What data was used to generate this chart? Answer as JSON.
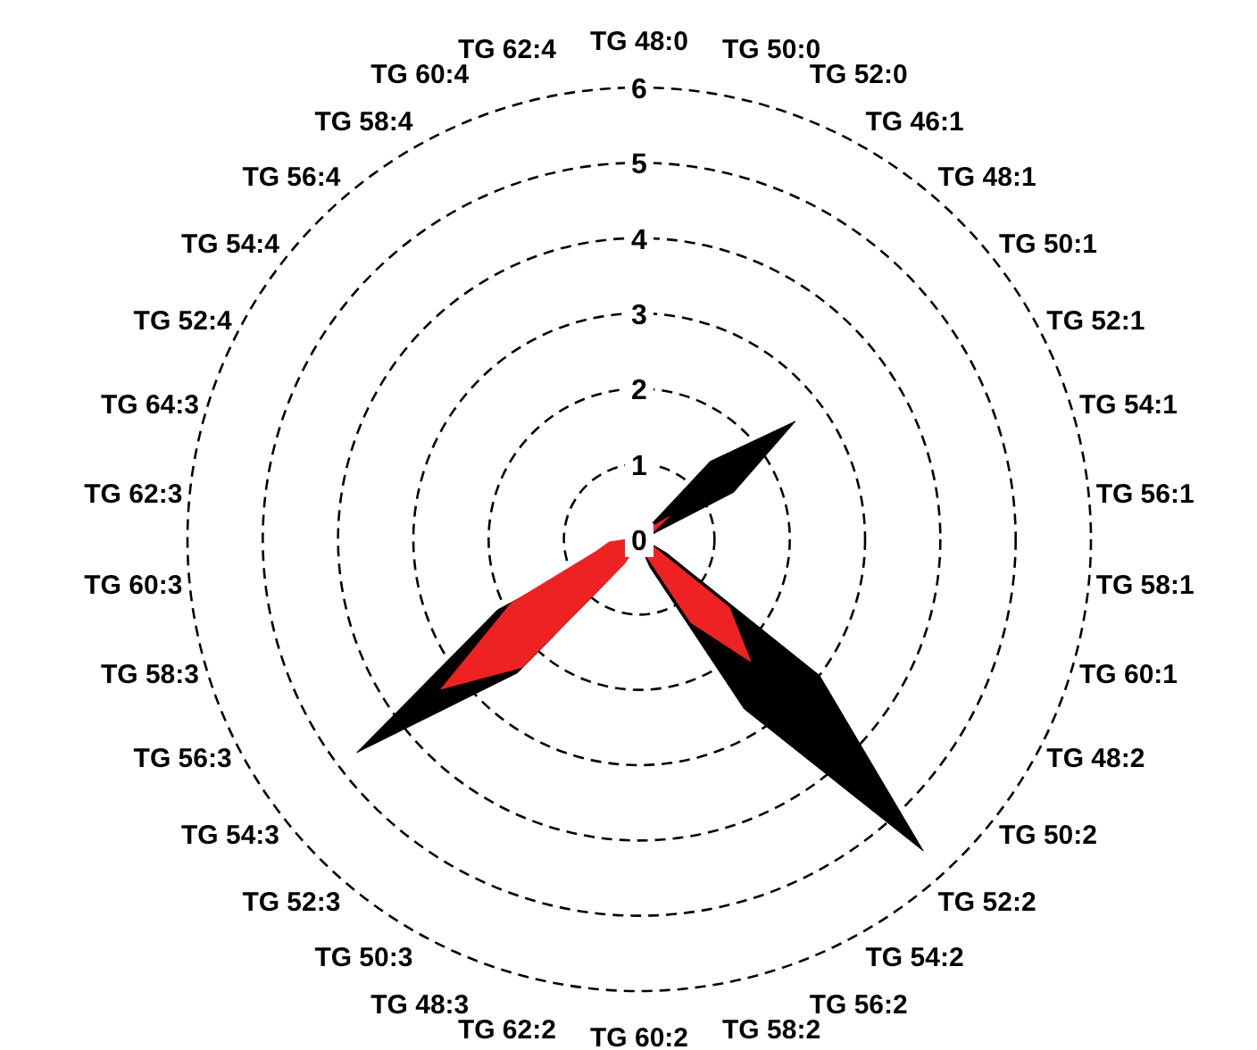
{
  "chart_data": {
    "type": "radar",
    "categories": [
      "TG 48:0",
      "TG 50:0",
      "TG 52:0",
      "TG 46:1",
      "TG 48:1",
      "TG 50:1",
      "TG 52:1",
      "TG 54:1",
      "TG 56:1",
      "TG 58:1",
      "TG 60:1",
      "TG 48:2",
      "TG 50:2",
      "TG 52:2",
      "TG 54:2",
      "TG 56:2",
      "TG 58:2",
      "TG 60:2",
      "TG 62:2",
      "TG 48:3",
      "TG 50:3",
      "TG 52:3",
      "TG 54:3",
      "TG 56:3",
      "TG 58:3",
      "TG 60:3",
      "TG 62:3",
      "TG 64:3",
      "TG 52:4",
      "TG 54:4",
      "TG 56:4",
      "TG 58:4",
      "TG 60:4",
      "TG 62:4"
    ],
    "series": [
      {
        "color": "#000000",
        "values": [
          0.1,
          0.1,
          0.1,
          0.1,
          1.4,
          2.6,
          1.4,
          0.1,
          0.1,
          0.1,
          0.1,
          0.4,
          3.0,
          5.6,
          2.65,
          0.4,
          0.1,
          0.1,
          0.1,
          0.1,
          0.4,
          2.4,
          4.7,
          2.1,
          0.3,
          0.1,
          0.1,
          0.1,
          0.1,
          0.1,
          0.1,
          0.1,
          0.1,
          0.1
        ]
      },
      {
        "color": "#ee2222",
        "values": [
          0.1,
          0.1,
          0.1,
          0.1,
          0.2,
          0.5,
          0.2,
          0.1,
          0.1,
          0.1,
          0.1,
          0.2,
          1.5,
          2.2,
          1.3,
          0.2,
          0.1,
          0.1,
          0.1,
          0.1,
          0.4,
          2.3,
          3.3,
          1.9,
          0.6,
          0.4,
          0.1,
          0.1,
          0.1,
          0.1,
          0.1,
          0.1,
          0.1,
          0.1
        ]
      }
    ],
    "ylim": [
      0,
      6
    ],
    "yticks": [
      0,
      1,
      2,
      3,
      4,
      5,
      6
    ],
    "grid": true,
    "line_style": "dashed"
  }
}
